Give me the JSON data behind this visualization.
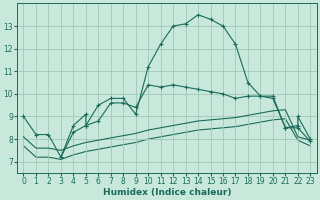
{
  "bg_color": "#c8e8dc",
  "grid_color": "#a0c8b8",
  "line_color": "#1a6b5a",
  "marker_color": "#1a6b5a",
  "xlabel": "Humidex (Indice chaleur)",
  "xlim": [
    -0.5,
    23.5
  ],
  "ylim": [
    6.5,
    14.0
  ],
  "xticks": [
    0,
    1,
    2,
    3,
    4,
    5,
    6,
    7,
    8,
    9,
    10,
    11,
    12,
    13,
    14,
    15,
    16,
    17,
    18,
    19,
    20,
    21,
    22,
    23
  ],
  "yticks": [
    7,
    8,
    9,
    10,
    11,
    12,
    13
  ],
  "curve1_x": [
    0,
    1,
    2,
    3,
    4,
    5,
    5,
    6,
    7,
    8,
    9,
    10,
    11,
    12,
    13,
    14,
    15,
    16,
    17,
    18,
    19,
    20,
    21,
    22,
    22,
    23
  ],
  "curve1_y": [
    9.0,
    8.2,
    8.2,
    7.2,
    8.6,
    9.1,
    8.6,
    9.5,
    9.8,
    9.8,
    9.1,
    11.2,
    12.2,
    13.0,
    13.1,
    13.5,
    13.3,
    13.0,
    12.2,
    10.5,
    9.9,
    9.9,
    8.5,
    8.6,
    9.0,
    8.0
  ],
  "curve2_x": [
    3,
    4,
    5,
    6,
    7,
    8,
    9,
    10,
    11,
    12,
    13,
    14,
    15,
    16,
    17,
    18,
    19,
    20,
    21,
    22,
    23
  ],
  "curve2_y": [
    7.2,
    8.3,
    8.6,
    8.8,
    9.6,
    9.6,
    9.4,
    10.4,
    10.3,
    10.4,
    10.3,
    10.2,
    10.1,
    10.0,
    9.8,
    9.9,
    9.9,
    9.8,
    8.5,
    8.5,
    7.9
  ],
  "curve3_x": [
    0,
    1,
    2,
    3,
    4,
    5,
    6,
    7,
    8,
    9,
    10,
    11,
    12,
    13,
    14,
    15,
    16,
    17,
    18,
    19,
    20,
    21,
    22,
    23
  ],
  "curve3_y": [
    8.1,
    7.6,
    7.6,
    7.5,
    7.7,
    7.85,
    7.95,
    8.05,
    8.15,
    8.25,
    8.4,
    8.5,
    8.6,
    8.7,
    8.8,
    8.85,
    8.9,
    8.95,
    9.05,
    9.15,
    9.25,
    9.3,
    8.1,
    7.95
  ],
  "curve4_x": [
    0,
    1,
    2,
    3,
    4,
    5,
    6,
    7,
    8,
    9,
    10,
    11,
    12,
    13,
    14,
    15,
    16,
    17,
    18,
    19,
    20,
    21,
    22,
    23
  ],
  "curve4_y": [
    7.7,
    7.2,
    7.2,
    7.1,
    7.3,
    7.45,
    7.55,
    7.65,
    7.75,
    7.85,
    8.0,
    8.1,
    8.2,
    8.3,
    8.4,
    8.45,
    8.5,
    8.55,
    8.65,
    8.75,
    8.85,
    8.9,
    7.95,
    7.7
  ]
}
